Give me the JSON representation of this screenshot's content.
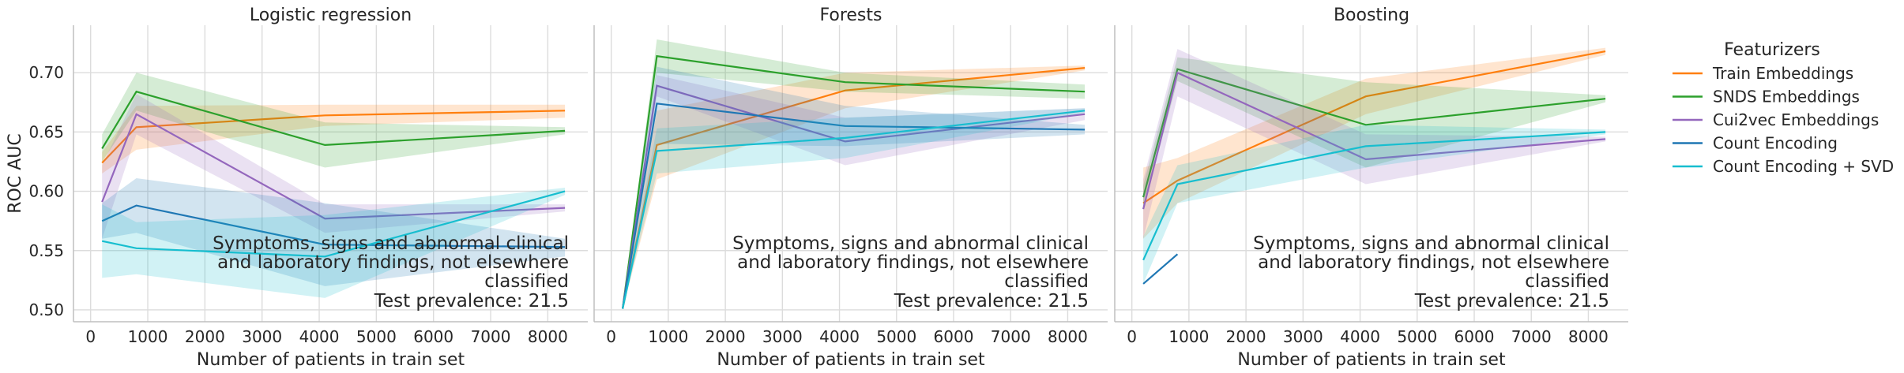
{
  "chart_data": {
    "type": "line",
    "ylabel": "ROC AUC",
    "xlabel": "Number of patients in train set",
    "xlim": [
      -300,
      8700
    ],
    "ylim": [
      0.49,
      0.74
    ],
    "xticks": [
      0,
      1000,
      2000,
      3000,
      4000,
      5000,
      6000,
      7000,
      8000
    ],
    "yticks": [
      0.5,
      0.55,
      0.6,
      0.65,
      0.7
    ],
    "grid": true,
    "legend": {
      "title": "Featurizers",
      "placement": "right"
    },
    "annotation": {
      "lines": [
        "Symptoms, signs and abnormal clinical",
        "and laboratory findings, not elsewhere",
        "classified",
        "Test prevalence: 21.5"
      ]
    },
    "series_styles": [
      {
        "name": "Train Embeddings",
        "color": "#ff7f0e"
      },
      {
        "name": "SNDS Embeddings",
        "color": "#2ca02c"
      },
      {
        "name": "Cui2vec Embeddings",
        "color": "#9467bd"
      },
      {
        "name": "Count Encoding",
        "color": "#1f77b4"
      },
      {
        "name": "Count Encoding + SVD",
        "color": "#17becf"
      }
    ],
    "panels": [
      {
        "title": "Logistic regression",
        "x": [
          200,
          800,
          4100,
          8300
        ],
        "series": [
          {
            "name": "Train Embeddings",
            "values": [
              0.624,
              0.654,
              0.664,
              0.668
            ],
            "lower": [
              0.615,
              0.635,
              0.655,
              0.662
            ],
            "upper": [
              0.633,
              0.672,
              0.673,
              0.673
            ]
          },
          {
            "name": "SNDS Embeddings",
            "values": [
              0.636,
              0.684,
              0.639,
              0.651
            ],
            "lower": [
              0.625,
              0.668,
              0.62,
              0.648
            ],
            "upper": [
              0.648,
              0.7,
              0.658,
              0.654
            ]
          },
          {
            "name": "Cui2vec Embeddings",
            "values": [
              0.591,
              0.665,
              0.577,
              0.586
            ],
            "lower": [
              0.56,
              0.648,
              0.565,
              0.583
            ],
            "upper": [
              0.622,
              0.682,
              0.589,
              0.589
            ]
          },
          {
            "name": "Count Encoding",
            "values": [
              0.575,
              0.588,
              0.555,
              0.553
            ],
            "lower": [
              0.56,
              0.565,
              0.52,
              0.545
            ],
            "upper": [
              0.59,
              0.611,
              0.59,
              0.56
            ]
          },
          {
            "name": "Count Encoding + SVD",
            "values": [
              0.558,
              0.552,
              0.545,
              0.6
            ],
            "lower": [
              0.527,
              0.53,
              0.51,
              0.597
            ],
            "upper": [
              0.589,
              0.574,
              0.58,
              0.603
            ]
          }
        ]
      },
      {
        "title": "Forests",
        "x": [
          200,
          800,
          4100,
          8300
        ],
        "series": [
          {
            "name": "Train Embeddings",
            "values": [
              0.501,
              0.639,
              0.685,
              0.704
            ],
            "lower": [
              0.501,
              0.61,
              0.67,
              0.702
            ],
            "upper": [
              0.501,
              0.668,
              0.7,
              0.706
            ]
          },
          {
            "name": "SNDS Embeddings",
            "values": [
              0.501,
              0.714,
              0.692,
              0.684
            ],
            "lower": [
              0.501,
              0.7,
              0.684,
              0.678
            ],
            "upper": [
              0.501,
              0.728,
              0.7,
              0.69
            ]
          },
          {
            "name": "Cui2vec Embeddings",
            "values": [
              0.501,
              0.689,
              0.642,
              0.665
            ],
            "lower": [
              0.501,
              0.68,
              0.622,
              0.66
            ],
            "upper": [
              0.501,
              0.698,
              0.662,
              0.67
            ]
          },
          {
            "name": "Count Encoding",
            "values": [
              0.501,
              0.674,
              0.655,
              0.652
            ],
            "lower": [
              0.501,
              0.64,
              0.638,
              0.648
            ],
            "upper": [
              0.501,
              0.705,
              0.672,
              0.656
            ]
          },
          {
            "name": "Count Encoding + SVD",
            "values": [
              0.501,
              0.634,
              0.645,
              0.668
            ],
            "lower": [
              0.501,
              0.615,
              0.628,
              0.666
            ],
            "upper": [
              0.501,
              0.653,
              0.662,
              0.67
            ]
          }
        ]
      },
      {
        "title": "Boosting",
        "x": [
          200,
          800,
          4100,
          8300
        ],
        "series": [
          {
            "name": "Train Embeddings",
            "values": [
              0.59,
              0.609,
              0.68,
              0.718
            ],
            "lower": [
              0.56,
              0.59,
              0.665,
              0.715
            ],
            "upper": [
              0.62,
              0.628,
              0.695,
              0.721
            ]
          },
          {
            "name": "SNDS Embeddings",
            "values": [
              0.595,
              0.703,
              0.656,
              0.678
            ],
            "lower": [
              0.585,
              0.693,
              0.62,
              0.675
            ],
            "upper": [
              0.605,
              0.713,
              0.692,
              0.681
            ]
          },
          {
            "name": "Cui2vec Embeddings",
            "values": [
              0.585,
              0.7,
              0.627,
              0.644
            ],
            "lower": [
              0.56,
              0.68,
              0.606,
              0.642
            ],
            "upper": [
              0.61,
              0.72,
              0.648,
              0.646
            ]
          },
          {
            "name": "Count Encoding",
            "values": [
              0.522,
              0.547,
              null,
              null
            ],
            "lower": [
              0.522,
              0.547,
              null,
              null
            ],
            "upper": [
              0.522,
              0.547,
              null,
              null
            ]
          },
          {
            "name": "Count Encoding + SVD",
            "values": [
              0.542,
              0.606,
              0.638,
              0.65
            ],
            "lower": [
              0.522,
              0.59,
              0.62,
              0.648
            ],
            "upper": [
              0.562,
              0.622,
              0.656,
              0.652
            ]
          }
        ]
      }
    ]
  }
}
